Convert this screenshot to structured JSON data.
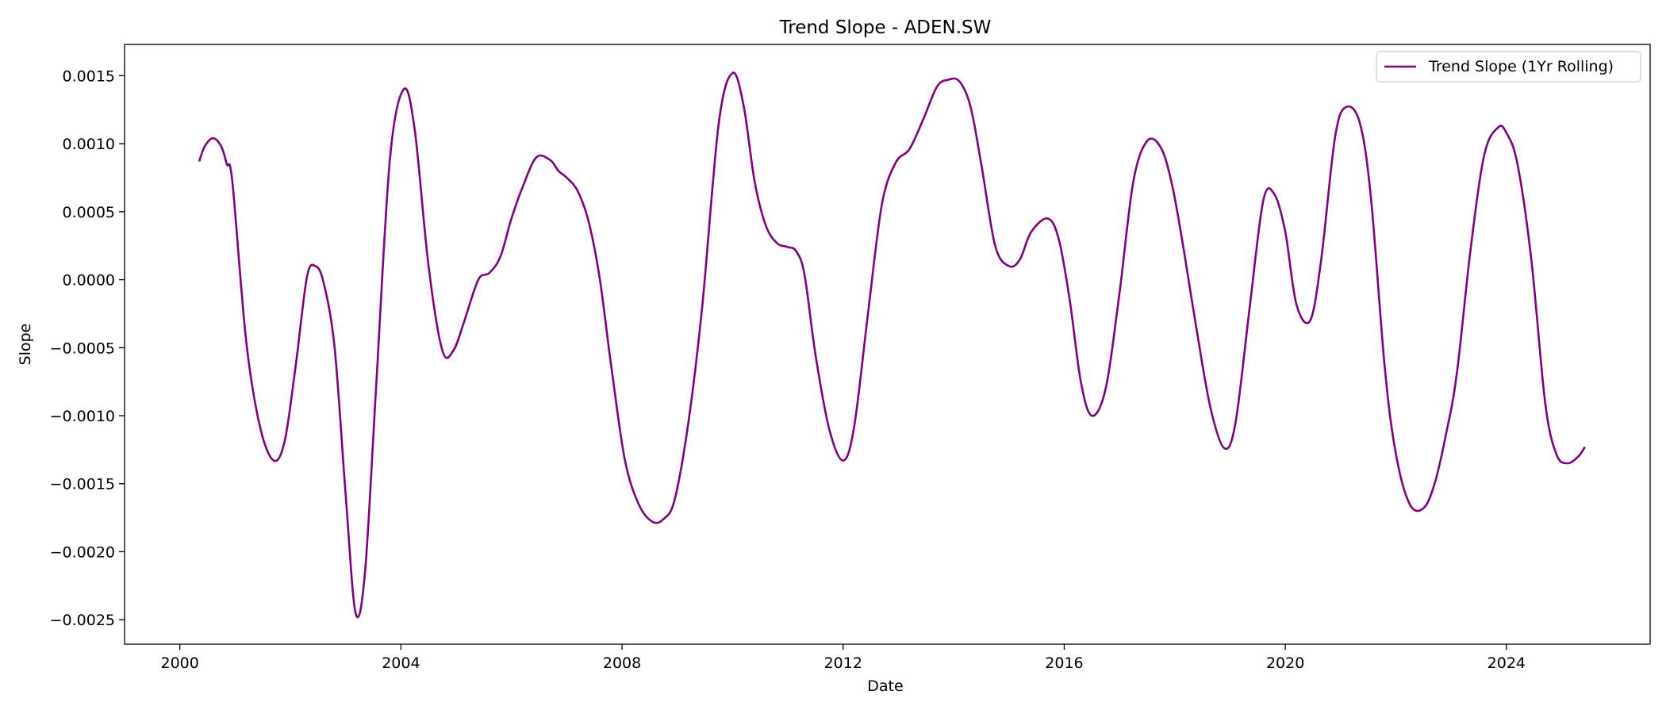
{
  "chart_data": {
    "type": "line",
    "title": "Trend Slope - ADEN.SW",
    "xlabel": "Date",
    "ylabel": "Slope",
    "xlim": [
      1999.0,
      2026.6
    ],
    "ylim": [
      -0.00268,
      0.00173
    ],
    "x_ticks": [
      2000,
      2004,
      2008,
      2012,
      2016,
      2020,
      2024
    ],
    "x_tick_labels": [
      "2000",
      "2004",
      "2008",
      "2012",
      "2016",
      "2020",
      "2024"
    ],
    "y_ticks": [
      0.0015,
      0.001,
      0.0005,
      0.0,
      -0.0005,
      -0.001,
      -0.0015,
      -0.002,
      -0.0025
    ],
    "y_tick_labels": [
      "0.0015",
      "0.0010",
      "0.0005",
      "0.0000",
      "−0.0005",
      "−0.0010",
      "−0.0015",
      "−0.0020",
      "−0.0025"
    ],
    "grid": false,
    "legend_position": "top-right",
    "color": "#800080",
    "series": [
      {
        "name": "Trend Slope (1Yr Rolling)",
        "x": [
          2000.35,
          2000.45,
          2000.6,
          2000.75,
          2000.85,
          2000.95,
          2001.2,
          2001.45,
          2001.7,
          2001.9,
          2002.1,
          2002.3,
          2002.45,
          2002.6,
          2002.8,
          2003.0,
          2003.18,
          2003.35,
          2003.55,
          2003.8,
          2004.05,
          2004.25,
          2004.5,
          2004.75,
          2004.95,
          2005.15,
          2005.4,
          2005.6,
          2005.8,
          2006.0,
          2006.2,
          2006.45,
          2006.7,
          2006.85,
          2007.0,
          2007.2,
          2007.4,
          2007.6,
          2007.8,
          2008.05,
          2008.3,
          2008.55,
          2008.75,
          2008.95,
          2009.2,
          2009.45,
          2009.75,
          2010.0,
          2010.2,
          2010.4,
          2010.6,
          2010.8,
          2011.0,
          2011.15,
          2011.3,
          2011.5,
          2011.75,
          2012.0,
          2012.2,
          2012.45,
          2012.7,
          2012.95,
          2013.2,
          2013.45,
          2013.7,
          2013.9,
          2014.1,
          2014.3,
          2014.5,
          2014.75,
          2015.0,
          2015.2,
          2015.4,
          2015.7,
          2015.9,
          2016.1,
          2016.3,
          2016.5,
          2016.75,
          2017.0,
          2017.25,
          2017.5,
          2017.75,
          2017.95,
          2018.15,
          2018.4,
          2018.65,
          2018.9,
          2019.1,
          2019.35,
          2019.6,
          2019.8,
          2020.0,
          2020.2,
          2020.45,
          2020.65,
          2020.9,
          2021.1,
          2021.35,
          2021.55,
          2021.8,
          2022.0,
          2022.25,
          2022.5,
          2022.7,
          2022.9,
          2023.1,
          2023.35,
          2023.6,
          2023.85,
          2024.0,
          2024.2,
          2024.45,
          2024.7,
          2024.9,
          2025.1,
          2025.3,
          2025.42
        ],
        "y": [
          0.00087,
          0.00098,
          0.00104,
          0.00098,
          0.00085,
          0.00072,
          -0.00045,
          -0.00108,
          -0.00133,
          -0.00118,
          -0.00062,
          2e-05,
          0.0001,
          -2e-05,
          -0.0005,
          -0.00158,
          -0.00245,
          -0.00215,
          -0.0008,
          0.00088,
          0.0014,
          0.0011,
          0.0001,
          -0.00052,
          -0.00052,
          -0.0003,
          0.0,
          5e-05,
          0.00017,
          0.00045,
          0.00068,
          0.0009,
          0.00088,
          0.0008,
          0.00075,
          0.00065,
          0.00042,
          0.0,
          -0.00062,
          -0.00132,
          -0.00165,
          -0.00178,
          -0.00176,
          -0.00162,
          -0.00105,
          -0.0002,
          0.00115,
          0.00152,
          0.00128,
          0.00072,
          0.0004,
          0.00027,
          0.00024,
          0.00021,
          4e-05,
          -0.00055,
          -0.0011,
          -0.00133,
          -0.00108,
          -0.00025,
          0.00055,
          0.00086,
          0.00096,
          0.00118,
          0.00142,
          0.00147,
          0.00146,
          0.00128,
          0.00085,
          0.00025,
          0.0001,
          0.00015,
          0.00035,
          0.00045,
          0.0003,
          -0.00015,
          -0.00075,
          -0.001,
          -0.0008,
          -0.0001,
          0.00072,
          0.00102,
          0.00097,
          0.0007,
          0.00025,
          -0.00038,
          -0.00095,
          -0.00124,
          -0.00105,
          -0.00022,
          0.00058,
          0.00063,
          0.00035,
          -0.00018,
          -0.0003,
          0.00015,
          0.00105,
          0.00127,
          0.00115,
          0.0006,
          -0.00065,
          -0.00128,
          -0.00165,
          -0.00168,
          -0.0015,
          -0.00115,
          -0.0007,
          0.00022,
          0.00092,
          0.00112,
          0.00108,
          0.00085,
          0.00015,
          -0.0009,
          -0.00128,
          -0.00135,
          -0.0013,
          -0.00123
        ]
      }
    ]
  }
}
